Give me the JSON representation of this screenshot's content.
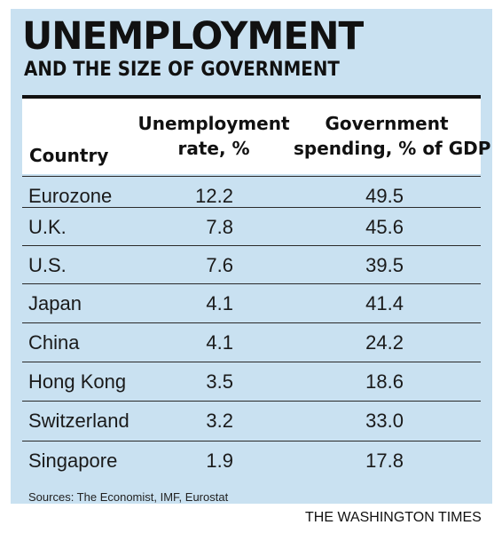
{
  "title": "UNEMPLOYMENT",
  "subtitle": "AND THE SIZE OF GOVERNMENT",
  "columns": {
    "country": "Country",
    "unemployment": [
      "Unemployment",
      "rate, %"
    ],
    "government": [
      "Government",
      "spending, % of GDP"
    ]
  },
  "rows": [
    {
      "country": "Eurozone",
      "unemployment": "12.2",
      "government": "49.5"
    },
    {
      "country": "U.K.",
      "unemployment": "7.8",
      "government": "45.6"
    },
    {
      "country": "U.S.",
      "unemployment": "7.6",
      "government": "39.5"
    },
    {
      "country": "Japan",
      "unemployment": "4.1",
      "government": "41.4"
    },
    {
      "country": "China",
      "unemployment": "4.1",
      "government": "24.2"
    },
    {
      "country": "Hong Kong",
      "unemployment": "3.5",
      "government": "18.6"
    },
    {
      "country": "Switzerland",
      "unemployment": "3.2",
      "government": "33.0"
    },
    {
      "country": "Singapore",
      "unemployment": "1.9",
      "government": "17.8"
    }
  ],
  "sources": "Sources: The Economist, IMF, Eurostat",
  "credit": "THE WASHINGTON TIMES",
  "colors": {
    "panel": "#c9e1f1",
    "header": "#ffffff",
    "rule": "#111111"
  },
  "chart_data": {
    "type": "table",
    "title": "UNEMPLOYMENT",
    "subtitle": "AND THE SIZE OF GOVERNMENT",
    "columns": [
      "Country",
      "Unemployment rate, %",
      "Government spending, % of GDP"
    ],
    "categories": [
      "Eurozone",
      "U.K.",
      "U.S.",
      "Japan",
      "China",
      "Hong Kong",
      "Switzerland",
      "Singapore"
    ],
    "series": [
      {
        "name": "Unemployment rate, %",
        "values": [
          12.2,
          7.8,
          7.6,
          4.1,
          4.1,
          3.5,
          3.2,
          1.9
        ]
      },
      {
        "name": "Government spending, % of GDP",
        "values": [
          49.5,
          45.6,
          39.5,
          41.4,
          24.2,
          18.6,
          33.0,
          17.8
        ]
      }
    ]
  }
}
